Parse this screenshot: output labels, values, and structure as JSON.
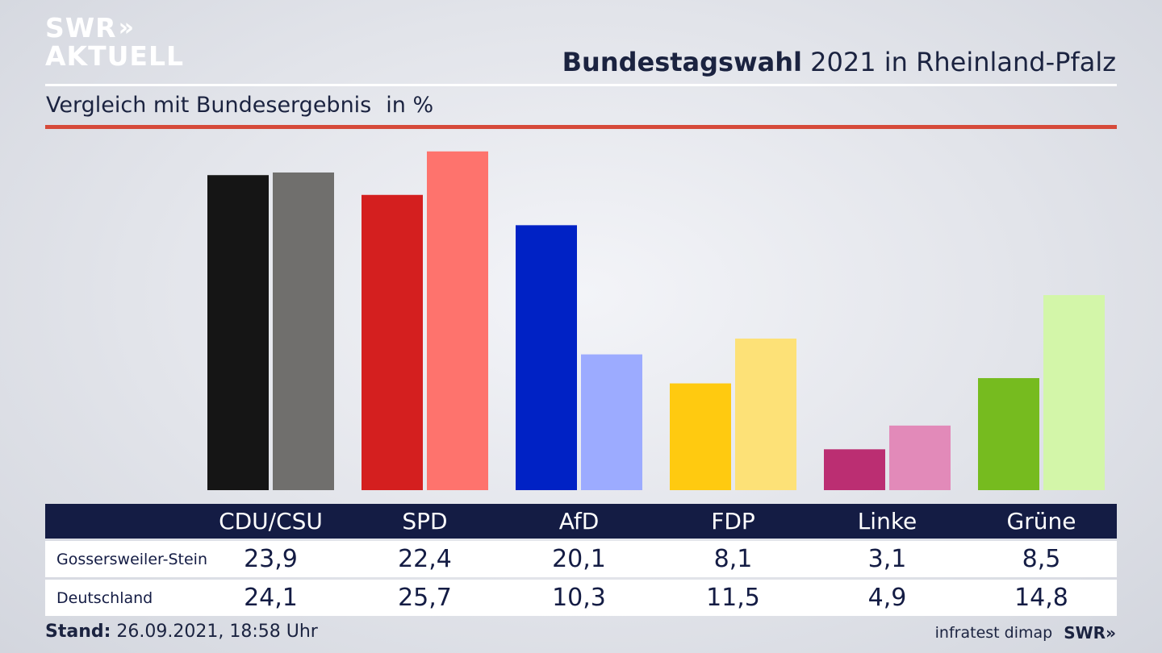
{
  "logo": {
    "line1": "SWR",
    "line2": "AKTUELL",
    "arrows": "»"
  },
  "header": {
    "title_bold": "Bundestagswahl",
    "title_rest": " 2021 in Rheinland-Pfalz",
    "subtitle": "Vergleich mit Bundesergebnis",
    "unit": "in %"
  },
  "colors": {
    "cdu": [
      "#151515",
      "#706f6d"
    ],
    "spd": [
      "#d41f1f",
      "#fe736d"
    ],
    "afd": [
      "#0022c5",
      "#9cabff"
    ],
    "fdp": [
      "#ffca10",
      "#fde177"
    ],
    "linke": [
      "#bb2e72",
      "#e28ab9"
    ],
    "gruene": [
      "#76bb1f",
      "#d3f6a9"
    ]
  },
  "chart_data": {
    "type": "bar",
    "categories": [
      "CDU/CSU",
      "SPD",
      "AfD",
      "FDP",
      "Linke",
      "Grüne"
    ],
    "series": [
      {
        "name": "Gossersweiler-Stein",
        "values": [
          23.9,
          22.4,
          20.1,
          8.1,
          3.1,
          8.5
        ]
      },
      {
        "name": "Deutschland",
        "values": [
          24.1,
          25.7,
          10.3,
          11.5,
          4.9,
          14.8
        ]
      }
    ]
  },
  "table": {
    "headers": [
      "CDU/CSU",
      "SPD",
      "AfD",
      "FDP",
      "Linke",
      "Grüne"
    ],
    "rows": [
      {
        "label": "Gossersweiler-Stein",
        "values": [
          "23,9",
          "22,4",
          "20,1",
          "8,1",
          "3,1",
          "8,5"
        ]
      },
      {
        "label": "Deutschland",
        "values": [
          "24,1",
          "25,7",
          "10,3",
          "11,5",
          "4,9",
          "14,8"
        ]
      }
    ]
  },
  "footer": {
    "stand_label": "Stand:",
    "stand_value": " 26.09.2021, 18:58 Uhr",
    "source": "infratest dimap",
    "brand": "SWR»"
  }
}
